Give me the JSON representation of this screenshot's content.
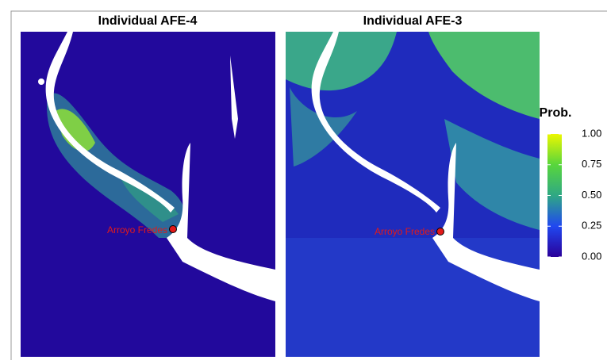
{
  "panels": [
    {
      "title": "Individual AFE-4",
      "site": "Arroyo Fredes"
    },
    {
      "title": "Individual AFE-3",
      "site": "Arroyo Fredes"
    }
  ],
  "legend": {
    "title": "Prob.",
    "range": [
      0,
      1
    ],
    "ticks": [
      {
        "value": 0,
        "label": "0.00"
      },
      {
        "value": 0.25,
        "label": "0.25"
      },
      {
        "value": 0.5,
        "label": "0.50"
      },
      {
        "value": 0.75,
        "label": "0.75"
      },
      {
        "value": 1,
        "label": "1.00"
      }
    ]
  }
}
